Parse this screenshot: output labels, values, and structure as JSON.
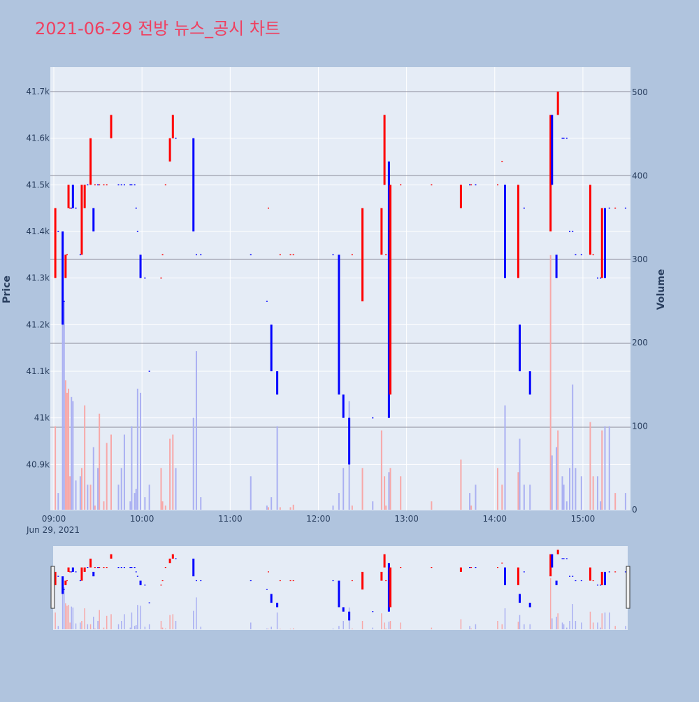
{
  "title": "2021-06-29 전방 뉴스_공시 차트",
  "colors": {
    "background": "#b0c4de",
    "plot_bg": "#e5ecf6",
    "up": "#ff0000",
    "down": "#0000ff",
    "title": "#ef4060",
    "axis_text": "#2a3f5f",
    "hline": "#8c8c99"
  },
  "chart_data": {
    "type": "candlestick",
    "ylabel": "Price",
    "y2label": "Volume",
    "x_date_label": "Jun 29, 2021",
    "x_ticks": [
      "09:00",
      "10:00",
      "11:00",
      "12:00",
      "13:00",
      "14:00",
      "15:00"
    ],
    "y_ticks": [
      "40.9k",
      "41k",
      "41.1k",
      "41.2k",
      "41.3k",
      "41.4k",
      "41.5k",
      "41.6k",
      "41.7k"
    ],
    "y2_ticks": [
      "0",
      "100",
      "200",
      "300",
      "400",
      "500"
    ],
    "ylim": [
      40800,
      41750
    ],
    "y2lim": [
      0,
      500
    ],
    "xlim": [
      "09:00",
      "15:30"
    ],
    "horizontal_lines": [
      41700,
      41520,
      41340,
      41160,
      40980
    ],
    "candles": [
      {
        "t": "09:01",
        "o": 41300,
        "c": 41450,
        "dir": "up",
        "v": 100
      },
      {
        "t": "09:06",
        "o": 41400,
        "c": 41200,
        "dir": "down",
        "v": 260
      },
      {
        "t": "09:08",
        "o": 41300,
        "c": 41350,
        "dir": "up",
        "v": 155
      },
      {
        "t": "09:10",
        "o": 41450,
        "c": 41500,
        "dir": "up",
        "v": 145
      },
      {
        "t": "09:13",
        "o": 41500,
        "c": 41450,
        "dir": "down",
        "v": 130
      },
      {
        "t": "09:19",
        "o": 41350,
        "c": 41500,
        "dir": "up",
        "v": 50
      },
      {
        "t": "09:21",
        "o": 41450,
        "c": 41500,
        "dir": "up",
        "v": 125
      },
      {
        "t": "09:25",
        "o": 41500,
        "c": 41600,
        "dir": "up",
        "v": 30
      },
      {
        "t": "09:27",
        "o": 41450,
        "c": 41400,
        "dir": "down",
        "v": 75
      },
      {
        "t": "09:39",
        "o": 41600,
        "c": 41650,
        "dir": "up",
        "v": 90
      },
      {
        "t": "09:59",
        "o": 41350,
        "c": 41300,
        "dir": "down",
        "v": 140
      },
      {
        "t": "10:19",
        "o": 41550,
        "c": 41600,
        "dir": "up",
        "v": 85
      },
      {
        "t": "10:21",
        "o": 41600,
        "c": 41650,
        "dir": "up",
        "v": 90
      },
      {
        "t": "10:35",
        "o": 41600,
        "c": 41400,
        "dir": "down",
        "v": 110
      },
      {
        "t": "11:28",
        "o": 41200,
        "c": 41100,
        "dir": "down",
        "v": 15
      },
      {
        "t": "11:32",
        "o": 41100,
        "c": 41050,
        "dir": "down",
        "v": 100
      },
      {
        "t": "12:14",
        "o": 41350,
        "c": 41050,
        "dir": "down",
        "v": 20
      },
      {
        "t": "12:17",
        "o": 41050,
        "c": 41000,
        "dir": "down",
        "v": 50
      },
      {
        "t": "12:21",
        "o": 41000,
        "c": 40900,
        "dir": "down",
        "v": 130
      },
      {
        "t": "12:30",
        "o": 41250,
        "c": 41450,
        "dir": "up",
        "v": 50
      },
      {
        "t": "12:43",
        "o": 41350,
        "c": 41450,
        "dir": "up",
        "v": 95
      },
      {
        "t": "12:45",
        "o": 41500,
        "c": 41650,
        "dir": "up",
        "v": 40
      },
      {
        "t": "12:48",
        "o": 41550,
        "c": 41000,
        "dir": "down",
        "v": 45
      },
      {
        "t": "12:49",
        "o": 41050,
        "c": 41500,
        "dir": "up",
        "v": 50
      },
      {
        "t": "13:37",
        "o": 41450,
        "c": 41500,
        "dir": "up",
        "v": 60
      },
      {
        "t": "14:07",
        "o": 41500,
        "c": 41300,
        "dir": "down",
        "v": 125
      },
      {
        "t": "14:16",
        "o": 41300,
        "c": 41500,
        "dir": "up",
        "v": 45
      },
      {
        "t": "14:17",
        "o": 41200,
        "c": 41100,
        "dir": "down",
        "v": 85
      },
      {
        "t": "14:24",
        "o": 41100,
        "c": 41050,
        "dir": "down",
        "v": 30
      },
      {
        "t": "14:38",
        "o": 41400,
        "c": 41650,
        "dir": "up",
        "v": 305
      },
      {
        "t": "14:39",
        "o": 41650,
        "c": 41500,
        "dir": "down",
        "v": 65
      },
      {
        "t": "14:42",
        "o": 41350,
        "c": 41300,
        "dir": "down",
        "v": 75
      },
      {
        "t": "14:43",
        "o": 41650,
        "c": 41700,
        "dir": "up",
        "v": 95
      },
      {
        "t": "15:05",
        "o": 41350,
        "c": 41500,
        "dir": "up",
        "v": 105
      },
      {
        "t": "15:13",
        "o": 41300,
        "c": 41450,
        "dir": "up",
        "v": 95
      },
      {
        "t": "15:15",
        "o": 41450,
        "c": 41300,
        "dir": "down",
        "v": 100
      }
    ],
    "small_trades": [
      {
        "t": "09:03",
        "p": 41400,
        "dir": "down",
        "v": 20
      },
      {
        "t": "09:07",
        "p": 41250,
        "dir": "down",
        "v": 250
      },
      {
        "t": "09:09",
        "p": 41350,
        "dir": "up",
        "v": 140
      },
      {
        "t": "09:11",
        "p": 41450,
        "dir": "up",
        "v": 40
      },
      {
        "t": "09:12",
        "p": 41450,
        "dir": "down",
        "v": 135
      },
      {
        "t": "09:15",
        "p": 41450,
        "dir": "down",
        "v": 35
      },
      {
        "t": "09:18",
        "p": 41350,
        "dir": "down",
        "v": 40
      },
      {
        "t": "09:23",
        "p": 41500,
        "dir": "down",
        "v": 30
      },
      {
        "t": "09:28",
        "p": 41500,
        "dir": "up",
        "v": 5
      },
      {
        "t": "09:30",
        "p": 41500,
        "dir": "down",
        "v": 50
      },
      {
        "t": "09:31",
        "p": 41500,
        "dir": "up",
        "v": 115
      },
      {
        "t": "09:34",
        "p": 41500,
        "dir": "up",
        "v": 10
      },
      {
        "t": "09:36",
        "p": 41500,
        "dir": "up",
        "v": 80
      },
      {
        "t": "09:44",
        "p": 41500,
        "dir": "down",
        "v": 30
      },
      {
        "t": "09:46",
        "p": 41500,
        "dir": "down",
        "v": 50
      },
      {
        "t": "09:48",
        "p": 41500,
        "dir": "down",
        "v": 90
      },
      {
        "t": "09:52",
        "p": 41500,
        "dir": "down",
        "v": 10
      },
      {
        "t": "09:53",
        "p": 41500,
        "dir": "down",
        "v": 100
      },
      {
        "t": "09:55",
        "p": 41500,
        "dir": "down",
        "v": 20
      },
      {
        "t": "09:56",
        "p": 41450,
        "dir": "down",
        "v": 25
      },
      {
        "t": "09:57",
        "p": 41400,
        "dir": "down",
        "v": 145
      },
      {
        "t": "10:02",
        "p": 41300,
        "dir": "down",
        "v": 15
      },
      {
        "t": "10:05",
        "p": 41100,
        "dir": "down",
        "v": 30
      },
      {
        "t": "10:13",
        "p": 41300,
        "dir": "up",
        "v": 50
      },
      {
        "t": "10:14",
        "p": 41350,
        "dir": "up",
        "v": 10
      },
      {
        "t": "10:16",
        "p": 41500,
        "dir": "up",
        "v": 5
      },
      {
        "t": "10:23",
        "p": 41600,
        "dir": "down",
        "v": 50
      },
      {
        "t": "10:37",
        "p": 41350,
        "dir": "down",
        "v": 190
      },
      {
        "t": "10:40",
        "p": 41350,
        "dir": "down",
        "v": 15
      },
      {
        "t": "11:14",
        "p": 41350,
        "dir": "down",
        "v": 40
      },
      {
        "t": "11:25",
        "p": 41250,
        "dir": "down",
        "v": 5
      },
      {
        "t": "11:26",
        "p": 41450,
        "dir": "up",
        "v": 3
      },
      {
        "t": "11:34",
        "p": 41350,
        "dir": "up",
        "v": 3
      },
      {
        "t": "11:41",
        "p": 41350,
        "dir": "up",
        "v": 3
      },
      {
        "t": "11:43",
        "p": 41350,
        "dir": "up",
        "v": 6
      },
      {
        "t": "12:10",
        "p": 41350,
        "dir": "down",
        "v": 5
      },
      {
        "t": "12:23",
        "p": 41350,
        "dir": "up",
        "v": 5
      },
      {
        "t": "12:37",
        "p": 41000,
        "dir": "down",
        "v": 10
      },
      {
        "t": "12:46",
        "p": 41350,
        "dir": "up",
        "v": 5
      },
      {
        "t": "12:56",
        "p": 41500,
        "dir": "up",
        "v": 40
      },
      {
        "t": "13:17",
        "p": 41500,
        "dir": "up",
        "v": 10
      },
      {
        "t": "13:43",
        "p": 41500,
        "dir": "down",
        "v": 20
      },
      {
        "t": "13:44",
        "p": 41500,
        "dir": "up",
        "v": 5
      },
      {
        "t": "13:47",
        "p": 41500,
        "dir": "down",
        "v": 30
      },
      {
        "t": "14:02",
        "p": 41500,
        "dir": "up",
        "v": 50
      },
      {
        "t": "14:05",
        "p": 41550,
        "dir": "up",
        "v": 30
      },
      {
        "t": "14:20",
        "p": 41450,
        "dir": "down",
        "v": 30
      },
      {
        "t": "14:46",
        "p": 41600,
        "dir": "down",
        "v": 40
      },
      {
        "t": "14:47",
        "p": 41600,
        "dir": "down",
        "v": 30
      },
      {
        "t": "14:49",
        "p": 41600,
        "dir": "down",
        "v": 10
      },
      {
        "t": "14:51",
        "p": 41400,
        "dir": "down",
        "v": 50
      },
      {
        "t": "14:53",
        "p": 41400,
        "dir": "down",
        "v": 150
      },
      {
        "t": "14:55",
        "p": 41350,
        "dir": "down",
        "v": 50
      },
      {
        "t": "14:59",
        "p": 41350,
        "dir": "down",
        "v": 40
      },
      {
        "t": "15:07",
        "p": 41350,
        "dir": "up",
        "v": 40
      },
      {
        "t": "15:10",
        "p": 41300,
        "dir": "down",
        "v": 40
      },
      {
        "t": "15:12",
        "p": 41300,
        "dir": "down",
        "v": 10
      },
      {
        "t": "15:18",
        "p": 41450,
        "dir": "down",
        "v": 100
      },
      {
        "t": "15:22",
        "p": 41450,
        "dir": "up",
        "v": 20
      },
      {
        "t": "15:29",
        "p": 41450,
        "dir": "down",
        "v": 20
      }
    ]
  }
}
